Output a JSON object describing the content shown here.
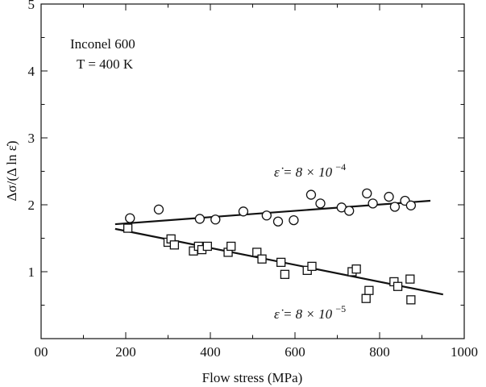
{
  "chart_data": {
    "type": "scatter",
    "title": "",
    "xlabel": "Flow stress (MPa)",
    "ylabel": "Δσ/(Δ ln ε̇)",
    "xlim": [
      0,
      1000
    ],
    "ylim": [
      0,
      5
    ],
    "x_ticks": [
      0,
      200,
      400,
      600,
      800,
      1000
    ],
    "x_tick_labels": [
      "00",
      "200",
      "400",
      "600",
      "800",
      "1000"
    ],
    "y_ticks": [
      0,
      1,
      2,
      3,
      4,
      5
    ],
    "y_tick_labels": [
      "",
      "1",
      "2",
      "3",
      "4",
      "5"
    ],
    "grid": false,
    "annotations": {
      "material": "Inconel 600",
      "temperature": "T = 400 K",
      "rate_high_lhs": "ε̇ = 8 × 10",
      "rate_high_exp": "−4",
      "rate_low_lhs": "ε̇ = 8 × 10",
      "rate_low_exp": "−5"
    },
    "series": [
      {
        "marker": "circle",
        "points": [
          [
            210,
            1.8
          ],
          [
            278,
            1.93
          ],
          [
            375,
            1.79
          ],
          [
            412,
            1.78
          ],
          [
            478,
            1.9
          ],
          [
            533,
            1.84
          ],
          [
            560,
            1.75
          ],
          [
            597,
            1.77
          ],
          [
            638,
            2.15
          ],
          [
            660,
            2.02
          ],
          [
            710,
            1.96
          ],
          [
            728,
            1.91
          ],
          [
            770,
            2.17
          ],
          [
            784,
            2.02
          ],
          [
            822,
            2.12
          ],
          [
            836,
            1.97
          ],
          [
            860,
            2.06
          ],
          [
            874,
            1.99
          ]
        ],
        "fit": [
          [
            175,
            1.71
          ],
          [
            920,
            2.06
          ]
        ]
      },
      {
        "marker": "square",
        "points": [
          [
            205,
            1.65
          ],
          [
            300,
            1.44
          ],
          [
            307,
            1.49
          ],
          [
            315,
            1.4
          ],
          [
            360,
            1.31
          ],
          [
            372,
            1.38
          ],
          [
            380,
            1.33
          ],
          [
            393,
            1.38
          ],
          [
            442,
            1.29
          ],
          [
            449,
            1.38
          ],
          [
            510,
            1.29
          ],
          [
            522,
            1.19
          ],
          [
            567,
            1.14
          ],
          [
            576,
            0.96
          ],
          [
            629,
            1.02
          ],
          [
            640,
            1.08
          ],
          [
            735,
            1.0
          ],
          [
            745,
            1.04
          ],
          [
            768,
            0.6
          ],
          [
            775,
            0.72
          ],
          [
            834,
            0.85
          ],
          [
            843,
            0.78
          ],
          [
            872,
            0.89
          ],
          [
            874,
            0.58
          ]
        ],
        "fit": [
          [
            175,
            1.64
          ],
          [
            950,
            0.66
          ]
        ]
      }
    ]
  }
}
